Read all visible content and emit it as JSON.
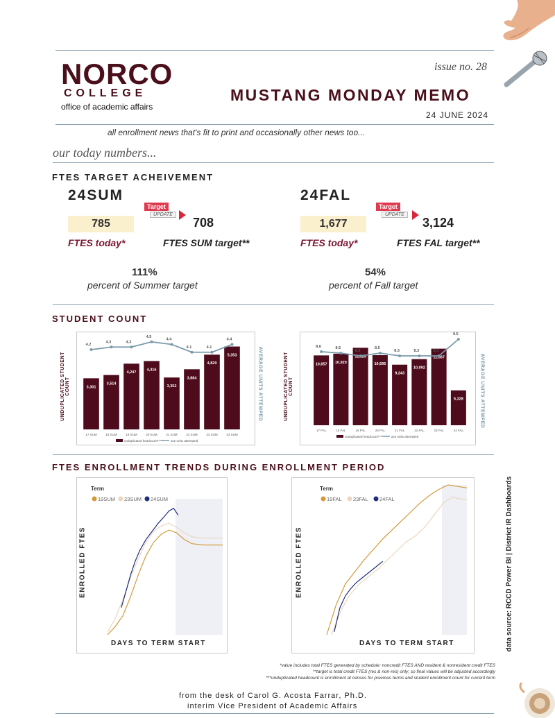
{
  "header": {
    "logo_main": "NORCO",
    "logo_sub": "COLLEGE",
    "logo_office": "office of academic affairs",
    "issue": "issue no. 28",
    "title": "MUSTANG MONDAY MEMO",
    "date": "24 JUNE 2024",
    "tagline": "all enrollment news that's fit to print and occasionally other news too..."
  },
  "section_today": "our today numbers...",
  "ftes": {
    "heading": "FTES TARGET ACHEIVEMENT",
    "tag_label": "Target",
    "tag_sub": "UPDATE",
    "summer": {
      "term": "24SUM",
      "today": "785",
      "target": "708",
      "today_label": "FTES today*",
      "target_label": "FTES SUM target**",
      "pct": "111%",
      "pct_label": "percent of Summer target",
      "pct_value": 111
    },
    "fall": {
      "term": "24FAL",
      "today": "1,677",
      "target": "3,124",
      "today_label": "FTES today*",
      "target_label": "FTES FAL target**",
      "pct": "54%",
      "pct_label": "percent of Fall target",
      "pct_value": 54
    }
  },
  "student_count": {
    "heading": "STUDENT COUNT",
    "y_left": "UNDUPLICATED STUDENT COUNT",
    "y_right": "AVERAGE UNITS ATTEMPED",
    "legend_bar": "unduplicated headcount***",
    "legend_line": "ave units attempted"
  },
  "trends": {
    "heading": "FTES ENROLLMENT TRENDS DURING ENROLLMENT PERIOD",
    "xlabel": "DAYS TO TERM START",
    "ylabel": "ENROLLED FTES",
    "legend_title": "Term"
  },
  "side_note": "data source: RCCD Power BI | District IR Dashboards",
  "footnotes": [
    "*value includes total FTES generated by schedule: noncredit FTES AND resident & nonresident credit FTES",
    "**target is total credit FTES (res & non-res) only; so final values will be adjusted accordingly",
    "***unduplicated headcount is enrollment at census for previous terms and student enrollment count for current term"
  ],
  "footer": {
    "line1": "from the desk of Carol G. Acosta Farrar, Ph.D.",
    "line2": "interim Vice President of Academic Affairs"
  },
  "colors": {
    "maroon": "#4a0f1a",
    "bar": "#4d0b1c",
    "line": "#7a9aaa",
    "accent_red": "#d8263a",
    "highlight": "#fbf0cd",
    "t19": "#d49a3a",
    "t23": "#ecd6bf",
    "t24": "#1f2d7a"
  },
  "chart_data": [
    {
      "type": "bar",
      "title": "",
      "categories": [
        "17 SUM",
        "18 SUM",
        "19 SUM",
        "20 SUM",
        "21 SUM",
        "22 SUM",
        "23 SUM",
        "24 SUM"
      ],
      "series": [
        {
          "name": "unduplicated headcount***",
          "values": [
            3301,
            3514,
            4247,
            4416,
            3352,
            3884,
            4829,
            5353
          ]
        },
        {
          "name": "ave units attempted",
          "values": [
            4.2,
            4.3,
            4.3,
            4.5,
            4.4,
            4.1,
            4.1,
            4.4
          ]
        }
      ],
      "value_labels": [
        "3,301",
        "3,514",
        "4,247",
        "4,416",
        "3,352",
        "3,884",
        "4,829",
        "5,353"
      ],
      "line_labels": [
        "4.2",
        "4.3",
        "4.3",
        "4.5",
        "4.4",
        "4.1",
        "4.1",
        "4.4"
      ]
    },
    {
      "type": "bar",
      "title": "",
      "categories": [
        "17 FAL",
        "18 FAL",
        "19 FAL",
        "20 FAL",
        "21 FAL",
        "22 FAL",
        "23 FAL",
        "24 FAL"
      ],
      "series": [
        {
          "name": "unduplicated headcount***",
          "values": [
            10657,
            10920,
            11825,
            10695,
            9243,
            10092,
            11687,
            5328
          ]
        },
        {
          "name": "ave units attempted",
          "values": [
            8.6,
            8.5,
            8.3,
            8.5,
            8.3,
            8.3,
            8.3,
            9.5
          ]
        }
      ],
      "value_labels": [
        "10,657",
        "10,920",
        "11,825",
        "10,695",
        "9,243",
        "10,092",
        "11,687",
        "5,328"
      ],
      "line_labels": [
        "8.6",
        "8.5",
        "8.3",
        "8.5",
        "8.3",
        "8.3",
        "8.3",
        "9.5"
      ]
    },
    {
      "type": "line",
      "title": "",
      "legend": [
        "19SUM",
        "23SUM",
        "24SUM"
      ],
      "series": [
        {
          "name": "19SUM",
          "values": [
            [
              0,
              0
            ],
            [
              10,
              6
            ],
            [
              20,
              14
            ],
            [
              30,
              28
            ],
            [
              40,
              44
            ],
            [
              50,
              58
            ],
            [
              60,
              68
            ],
            [
              70,
              74
            ],
            [
              80,
              77
            ],
            [
              90,
              75
            ],
            [
              100,
              70
            ],
            [
              110,
              67
            ],
            [
              125,
              66
            ],
            [
              150,
              66
            ]
          ]
        },
        {
          "name": "23SUM",
          "values": [
            [
              0,
              2
            ],
            [
              10,
              12
            ],
            [
              20,
              26
            ],
            [
              30,
              42
            ],
            [
              40,
              56
            ],
            [
              50,
              68
            ],
            [
              60,
              76
            ],
            [
              70,
              80
            ],
            [
              80,
              82
            ],
            [
              90,
              79
            ],
            [
              100,
              75
            ],
            [
              110,
              72
            ],
            [
              125,
              71
            ],
            [
              150,
              71
            ]
          ]
        },
        {
          "name": "24SUM",
          "values": [
            [
              18,
              20
            ],
            [
              24,
              32
            ],
            [
              30,
              44
            ],
            [
              36,
              54
            ],
            [
              42,
              62
            ],
            [
              50,
              70
            ],
            [
              58,
              76
            ],
            [
              66,
              82
            ],
            [
              74,
              87
            ],
            [
              80,
              91
            ],
            [
              86,
              93
            ],
            [
              92,
              88
            ]
          ]
        }
      ]
    },
    {
      "type": "line",
      "title": "",
      "legend": [
        "19FAL",
        "23FAL",
        "24FAL"
      ],
      "series": [
        {
          "name": "19FAL",
          "values": [
            [
              0,
              0
            ],
            [
              10,
              20
            ],
            [
              20,
              34
            ],
            [
              30,
              42
            ],
            [
              40,
              50
            ],
            [
              50,
              57
            ],
            [
              60,
              64
            ],
            [
              70,
              70
            ],
            [
              80,
              76
            ],
            [
              90,
              82
            ],
            [
              100,
              88
            ],
            [
              110,
              93
            ],
            [
              120,
              97
            ],
            [
              130,
              100
            ],
            [
              140,
              99
            ],
            [
              150,
              98
            ]
          ]
        },
        {
          "name": "23FAL",
          "values": [
            [
              5,
              0
            ],
            [
              15,
              16
            ],
            [
              25,
              27
            ],
            [
              35,
              34
            ],
            [
              45,
              39
            ],
            [
              55,
              44
            ],
            [
              65,
              50
            ],
            [
              75,
              56
            ],
            [
              85,
              62
            ],
            [
              95,
              66
            ],
            [
              105,
              72
            ],
            [
              115,
              80
            ],
            [
              125,
              88
            ],
            [
              135,
              92
            ],
            [
              140,
              91
            ],
            [
              150,
              90
            ]
          ]
        },
        {
          "name": "24FAL",
          "values": [
            [
              8,
              2
            ],
            [
              14,
              18
            ],
            [
              20,
              26
            ],
            [
              26,
              31
            ],
            [
              32,
              35
            ],
            [
              38,
              38
            ],
            [
              44,
              41
            ],
            [
              50,
              44
            ],
            [
              56,
              47
            ],
            [
              60,
              49
            ]
          ]
        }
      ]
    }
  ]
}
